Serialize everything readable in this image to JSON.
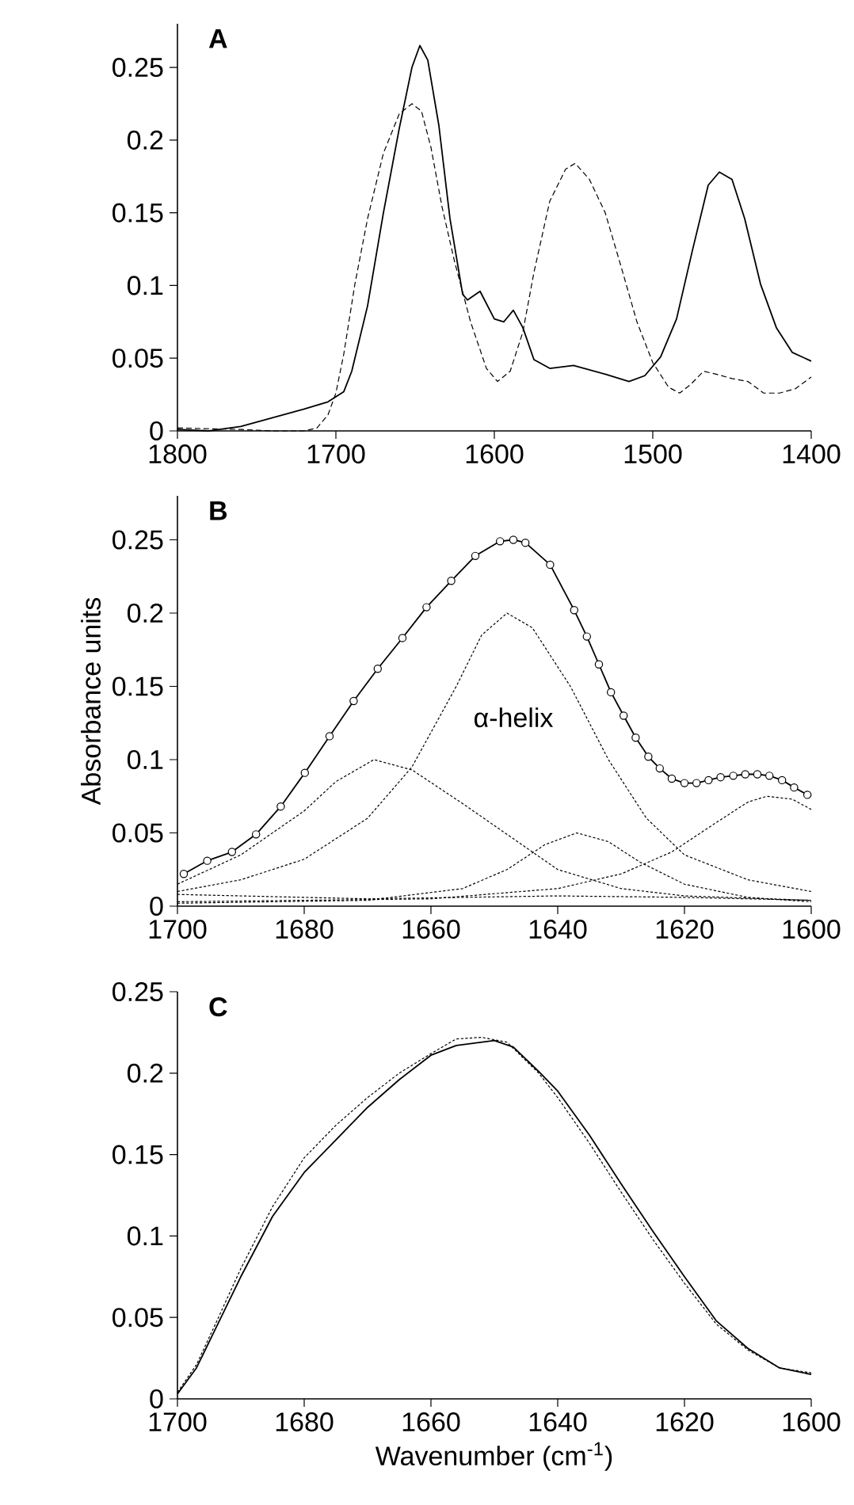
{
  "chart_data": [
    {
      "type": "line",
      "title": "A",
      "xlim": [
        1800,
        1400
      ],
      "xticks": [
        1800,
        1700,
        1600,
        1500,
        1400
      ],
      "ylim": [
        0,
        0.28
      ],
      "yticks": [
        0,
        0.05,
        0.1,
        0.15,
        0.2,
        0.25
      ],
      "series": [
        {
          "color": "#000000",
          "line_style": "solid",
          "x": [
            1800,
            1780,
            1760,
            1740,
            1720,
            1705,
            1695,
            1690,
            1680,
            1670,
            1660,
            1652,
            1647,
            1642,
            1635,
            1628,
            1620,
            1617,
            1609,
            1600,
            1594,
            1588,
            1582,
            1575,
            1565,
            1550,
            1530,
            1515,
            1505,
            1495,
            1485,
            1475,
            1465,
            1458,
            1450,
            1442,
            1432,
            1422,
            1412,
            1400
          ],
          "values": [
            0.001,
            0.0,
            0.003,
            0.009,
            0.015,
            0.02,
            0.027,
            0.041,
            0.086,
            0.15,
            0.208,
            0.25,
            0.265,
            0.255,
            0.21,
            0.146,
            0.094,
            0.09,
            0.096,
            0.077,
            0.075,
            0.083,
            0.071,
            0.049,
            0.043,
            0.045,
            0.039,
            0.034,
            0.038,
            0.051,
            0.077,
            0.124,
            0.169,
            0.178,
            0.173,
            0.146,
            0.101,
            0.071,
            0.054,
            0.048
          ]
        },
        {
          "color": "#000000",
          "line_style": "dashed",
          "x": [
            1800,
            1760,
            1740,
            1720,
            1712,
            1705,
            1700,
            1695,
            1688,
            1680,
            1670,
            1660,
            1652,
            1646,
            1640,
            1633,
            1625,
            1615,
            1605,
            1598,
            1590,
            1582,
            1575,
            1565,
            1555,
            1549,
            1540,
            1530,
            1520,
            1510,
            1500,
            1490,
            1483,
            1476,
            1468,
            1460,
            1450,
            1440,
            1430,
            1420,
            1410,
            1400
          ],
          "values": [
            0.002,
            0.001,
            0.0,
            0.0,
            0.002,
            0.011,
            0.026,
            0.053,
            0.101,
            0.146,
            0.191,
            0.218,
            0.225,
            0.22,
            0.195,
            0.154,
            0.116,
            0.075,
            0.043,
            0.034,
            0.041,
            0.068,
            0.109,
            0.158,
            0.18,
            0.184,
            0.173,
            0.15,
            0.113,
            0.075,
            0.047,
            0.03,
            0.026,
            0.032,
            0.041,
            0.039,
            0.036,
            0.034,
            0.026,
            0.026,
            0.029,
            0.037
          ]
        }
      ]
    },
    {
      "type": "line",
      "title": "B",
      "ylabel": "Absorbance units",
      "xlim": [
        1700,
        1600
      ],
      "xticks": [
        1700,
        1680,
        1660,
        1640,
        1620,
        1600
      ],
      "ylim": [
        0,
        0.28
      ],
      "yticks": [
        0,
        0.05,
        0.1,
        0.15,
        0.2,
        0.25
      ],
      "annotations": [
        "α-helix"
      ],
      "series": [
        {
          "color": "#000000",
          "line_style": "solid",
          "marker": "circle",
          "x": [
            1699.0,
            1695.3,
            1691.4,
            1687.6,
            1683.7,
            1679.9,
            1676.0,
            1672.2,
            1668.4,
            1664.5,
            1660.7,
            1656.8,
            1653.0,
            1649.1,
            1647.0,
            1645.1,
            1641.2,
            1637.4,
            1635.4,
            1633.5,
            1631.6,
            1629.6,
            1627.7,
            1625.7,
            1623.9,
            1622.0,
            1620.0,
            1618.1,
            1616.2,
            1614.3,
            1612.3,
            1610.4,
            1608.5,
            1606.6,
            1604.6,
            1602.7,
            1600.6
          ],
          "values": [
            0.022,
            0.031,
            0.037,
            0.049,
            0.068,
            0.091,
            0.116,
            0.14,
            0.162,
            0.183,
            0.204,
            0.222,
            0.239,
            0.249,
            0.25,
            0.248,
            0.233,
            0.202,
            0.184,
            0.165,
            0.146,
            0.13,
            0.115,
            0.102,
            0.094,
            0.087,
            0.084,
            0.084,
            0.086,
            0.088,
            0.089,
            0.09,
            0.09,
            0.089,
            0.086,
            0.081,
            0.076
          ]
        },
        {
          "color": "#000000",
          "line_style": "dotted",
          "x": [
            1700,
            1690,
            1680,
            1675,
            1669,
            1663,
            1655,
            1645,
            1640,
            1630,
            1620,
            1600
          ],
          "values": [
            0.015,
            0.035,
            0.065,
            0.085,
            0.1,
            0.093,
            0.07,
            0.04,
            0.025,
            0.012,
            0.007,
            0.004
          ]
        },
        {
          "color": "#000000",
          "line_style": "dotted",
          "x": [
            1700,
            1690,
            1680,
            1670,
            1663,
            1656,
            1652,
            1648,
            1644,
            1638,
            1632,
            1626,
            1620,
            1610,
            1600
          ],
          "values": [
            0.01,
            0.018,
            0.032,
            0.06,
            0.095,
            0.15,
            0.185,
            0.2,
            0.19,
            0.15,
            0.1,
            0.06,
            0.035,
            0.018,
            0.01
          ]
        },
        {
          "color": "#000000",
          "line_style": "dotted",
          "x": [
            1700,
            1670,
            1655,
            1648,
            1642,
            1637,
            1632,
            1627,
            1620,
            1610,
            1600
          ],
          "values": [
            0.002,
            0.004,
            0.012,
            0.025,
            0.042,
            0.05,
            0.044,
            0.03,
            0.015,
            0.006,
            0.003
          ]
        },
        {
          "color": "#000000",
          "line_style": "dotted",
          "x": [
            1700,
            1660,
            1640,
            1630,
            1622,
            1615,
            1610,
            1607,
            1603,
            1600
          ],
          "values": [
            0.003,
            0.005,
            0.012,
            0.022,
            0.037,
            0.057,
            0.071,
            0.075,
            0.073,
            0.066
          ]
        },
        {
          "color": "#000000",
          "line_style": "dotted",
          "x": [
            1700,
            1670,
            1640,
            1620,
            1600
          ],
          "values": [
            0.008,
            0.005,
            0.007,
            0.006,
            0.004
          ]
        }
      ]
    },
    {
      "type": "line",
      "title": "C",
      "xlabel": "Wavenumber (cm$^{-1}$)",
      "xlim": [
        1700,
        1600
      ],
      "xticks": [
        1700,
        1680,
        1660,
        1640,
        1620,
        1600
      ],
      "ylim": [
        0,
        0.25
      ],
      "yticks": [
        0,
        0.05,
        0.1,
        0.15,
        0.2,
        0.25
      ],
      "series": [
        {
          "color": "#000000",
          "line_style": "solid",
          "x": [
            1700,
            1697,
            1694,
            1690,
            1685,
            1680,
            1675,
            1670,
            1665,
            1660,
            1656,
            1650,
            1647,
            1643,
            1640,
            1635,
            1630,
            1625,
            1620,
            1615,
            1610,
            1605,
            1600
          ],
          "values": [
            0.003,
            0.019,
            0.043,
            0.075,
            0.112,
            0.139,
            0.159,
            0.179,
            0.196,
            0.211,
            0.217,
            0.22,
            0.216,
            0.201,
            0.189,
            0.162,
            0.132,
            0.103,
            0.075,
            0.048,
            0.031,
            0.019,
            0.015
          ]
        },
        {
          "color": "#000000",
          "line_style": "dotted",
          "x": [
            1700,
            1697,
            1694,
            1690,
            1685,
            1680,
            1675,
            1670,
            1665,
            1660,
            1656,
            1652,
            1648,
            1643,
            1640,
            1635,
            1630,
            1625,
            1620,
            1615,
            1610,
            1605,
            1600
          ],
          "values": [
            0.004,
            0.021,
            0.046,
            0.08,
            0.118,
            0.148,
            0.168,
            0.185,
            0.2,
            0.212,
            0.221,
            0.222,
            0.219,
            0.2,
            0.185,
            0.157,
            0.127,
            0.098,
            0.071,
            0.046,
            0.03,
            0.019,
            0.016
          ]
        }
      ]
    }
  ]
}
